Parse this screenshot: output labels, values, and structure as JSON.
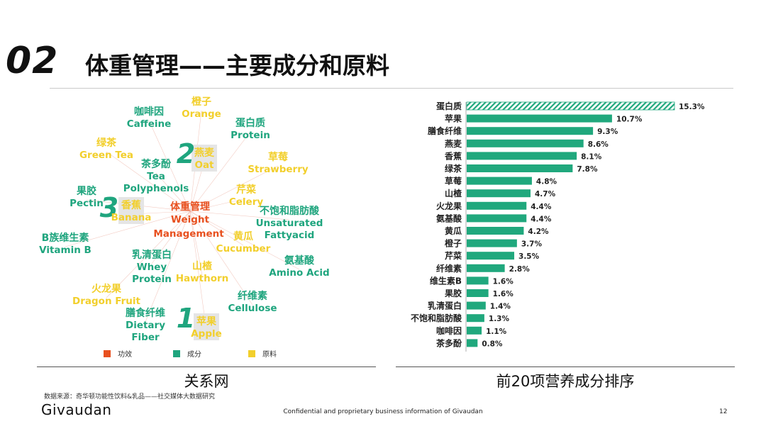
{
  "header": {
    "section_number": "02",
    "title": "体重管理——主要成分和原料"
  },
  "colors": {
    "function": "#e8501f",
    "ingredient": "#1fa57e",
    "raw_material": "#f2cf2c",
    "bar": "#20a87d",
    "highlight_box": "#e5e5e5",
    "edge": "#e8a090"
  },
  "network": {
    "caption": "关系网",
    "center": {
      "cn": "体重管理",
      "en1": "Weight",
      "en2": "Management",
      "category": "function"
    },
    "nodes": [
      {
        "cn": "咖啡因",
        "en": [
          "Caffeine"
        ],
        "category": "ingredient"
      },
      {
        "cn": "橙子",
        "en": [
          "Orange"
        ],
        "category": "raw_material"
      },
      {
        "cn": "蛋白质",
        "en": [
          "Protein"
        ],
        "category": "ingredient"
      },
      {
        "cn": "绿茶",
        "en": [
          "Green Tea"
        ],
        "category": "raw_material"
      },
      {
        "cn": "燕麦",
        "en": [
          "Oat"
        ],
        "category": "raw_material",
        "rank": "2"
      },
      {
        "cn": "茶多酚",
        "en": [
          "Tea",
          "Polyphenols"
        ],
        "category": "ingredient"
      },
      {
        "cn": "草莓",
        "en": [
          "Strawberry"
        ],
        "category": "raw_material"
      },
      {
        "cn": "果胶",
        "en": [
          "Pectin"
        ],
        "category": "ingredient"
      },
      {
        "cn": "芹菜",
        "en": [
          "Celery"
        ],
        "category": "raw_material"
      },
      {
        "cn": "香蕉",
        "en": [
          "Banana"
        ],
        "category": "raw_material",
        "rank": "3"
      },
      {
        "cn": "不饱和脂肪酸",
        "en": [
          "Unsaturated",
          "Fattyacid"
        ],
        "category": "ingredient"
      },
      {
        "cn": "B族维生素",
        "en": [
          "Vitamin B"
        ],
        "category": "ingredient"
      },
      {
        "cn": "黄瓜",
        "en": [
          "Cucumber"
        ],
        "category": "raw_material"
      },
      {
        "cn": "乳清蛋白",
        "en": [
          "Whey",
          "Protein"
        ],
        "category": "ingredient"
      },
      {
        "cn": "氨基酸",
        "en": [
          "Amino Acid"
        ],
        "category": "ingredient"
      },
      {
        "cn": "山楂",
        "en": [
          "Hawthorn"
        ],
        "category": "raw_material"
      },
      {
        "cn": "火龙果",
        "en": [
          "Dragon Fruit"
        ],
        "category": "raw_material"
      },
      {
        "cn": "纤维素",
        "en": [
          "Cellulose"
        ],
        "category": "ingredient"
      },
      {
        "cn": "膳食纤维",
        "en": [
          "Dietary",
          "Fiber"
        ],
        "category": "ingredient"
      },
      {
        "cn": "苹果",
        "en": [
          "Apple"
        ],
        "category": "raw_material",
        "rank": "1"
      }
    ],
    "legend": [
      {
        "label": "功效",
        "category": "function"
      },
      {
        "label": "成分",
        "category": "ingredient"
      },
      {
        "label": "原料",
        "category": "raw_material"
      }
    ]
  },
  "chart_data": {
    "type": "bar",
    "orientation": "horizontal",
    "title": "前20项营养成分排序",
    "categories": [
      "蛋白质",
      "苹果",
      "膳食纤维",
      "燕麦",
      "香蕉",
      "绿茶",
      "草莓",
      "山楂",
      "火龙果",
      "氨基酸",
      "黄瓜",
      "橙子",
      "芹菜",
      "纤维素",
      "维生素B",
      "果胶",
      "乳清蛋白",
      "不饱和脂肪酸",
      "咖啡因",
      "茶多酚"
    ],
    "values": [
      15.3,
      10.7,
      9.3,
      8.6,
      8.1,
      7.8,
      4.8,
      4.7,
      4.4,
      4.4,
      4.2,
      3.7,
      3.5,
      2.8,
      1.6,
      1.6,
      1.4,
      1.3,
      1.1,
      0.8
    ],
    "value_labels": [
      "15.3%",
      "10.7%",
      "9.3%",
      "8.6%",
      "8.1%",
      "7.8%",
      "4.8%",
      "4.7%",
      "4.4%",
      "4.4%",
      "4.2%",
      "3.7%",
      "3.5%",
      "2.8%",
      "1.6%",
      "1.6%",
      "1.4%",
      "1.3%",
      "1.1%",
      "0.8%"
    ],
    "hatched_first_bar": true,
    "xlim": [
      0,
      15.3
    ],
    "xlabel": "",
    "ylabel": "",
    "grid": false
  },
  "footer": {
    "source": "数据来源：奇华顿功能性饮料&乳品——社交媒体大数据研究",
    "logo": "Givaudan",
    "confidential": "Confidential and proprietary business information of Givaudan",
    "page": "12"
  }
}
